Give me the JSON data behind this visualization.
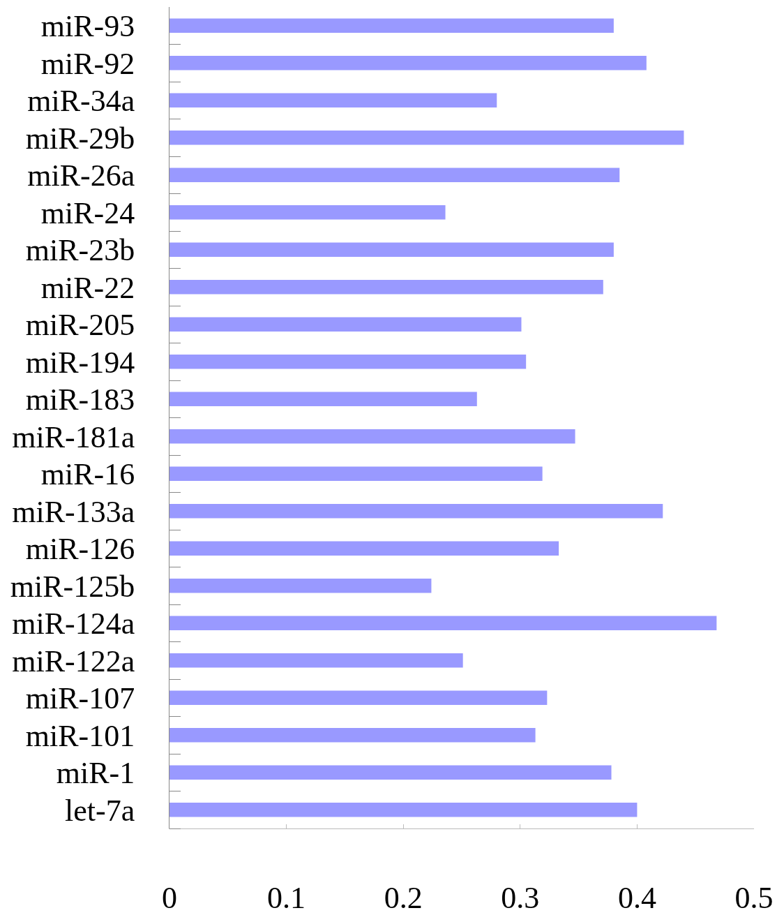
{
  "chart_data": {
    "type": "bar",
    "orientation": "horizontal",
    "categories": [
      "miR-93",
      "miR-92",
      "miR-34a",
      "miR-29b",
      "miR-26a",
      "miR-24",
      "miR-23b",
      "miR-22",
      "miR-205",
      "miR-194",
      "miR-183",
      "miR-181a",
      "miR-16",
      "miR-133a",
      "miR-126",
      "miR-125b",
      "miR-124a",
      "miR-122a",
      "miR-107",
      "miR-101",
      "miR-1",
      "let-7a"
    ],
    "values": [
      0.38,
      0.408,
      0.28,
      0.44,
      0.385,
      0.236,
      0.38,
      0.371,
      0.301,
      0.305,
      0.263,
      0.347,
      0.319,
      0.422,
      0.333,
      0.224,
      0.468,
      0.251,
      0.323,
      0.313,
      0.378,
      0.4
    ],
    "color": "#9999ff",
    "xlim": [
      0,
      0.5
    ],
    "xticks": [
      0,
      0.1,
      0.2,
      0.3,
      0.4,
      0.5
    ]
  }
}
